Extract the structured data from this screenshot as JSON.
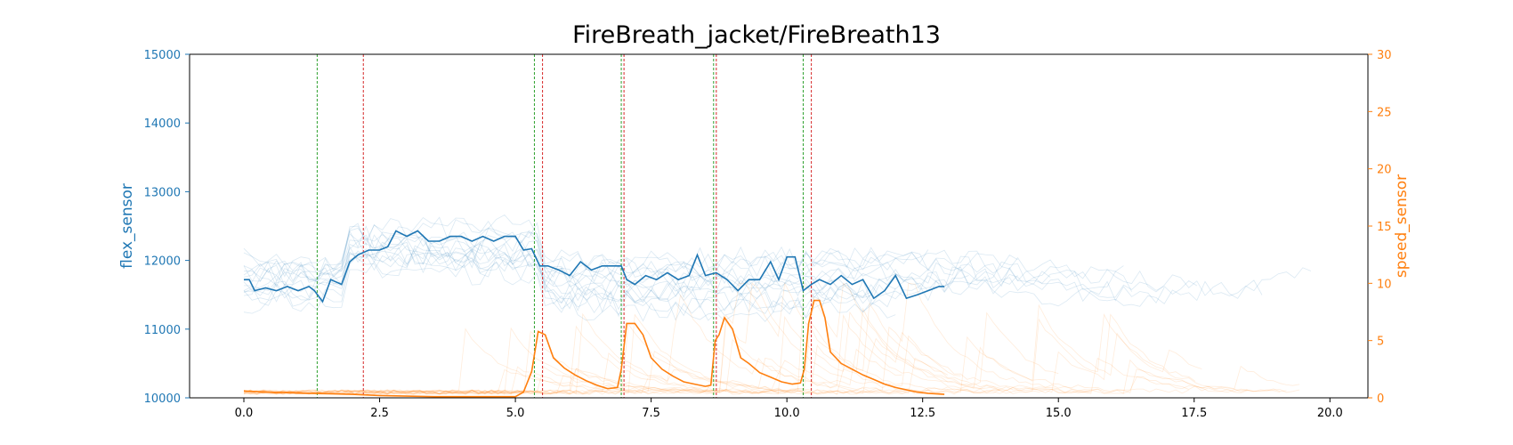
{
  "colors": {
    "flex": "#1f77b4",
    "speed": "#ff7f0e",
    "start_marker": "#2ca02c",
    "end_marker": "#d62728",
    "frame": "#000000"
  },
  "chart_data": {
    "type": "line",
    "title": "FireBreath_jacket/FireBreath13",
    "xlabel": "",
    "ylabel_left": "flex_sensor",
    "ylabel_right": "speed_sensor",
    "xlim": [
      -1.0,
      20.7
    ],
    "ylim_left": [
      10000,
      15000
    ],
    "ylim_right": [
      0,
      30
    ],
    "x_ticks": [
      0.0,
      2.5,
      5.0,
      7.5,
      10.0,
      12.5,
      15.0,
      17.5,
      20.0
    ],
    "x_tick_labels": [
      "0.0",
      "2.5",
      "5.0",
      "7.5",
      "10.0",
      "12.5",
      "15.0",
      "17.5",
      "20.0"
    ],
    "y_left_ticks": [
      10000,
      11000,
      12000,
      13000,
      14000,
      15000
    ],
    "y_left_tick_labels": [
      "10000",
      "11000",
      "12000",
      "13000",
      "14000",
      "15000"
    ],
    "y_right_ticks": [
      0,
      5,
      10,
      15,
      20,
      25,
      30
    ],
    "y_right_tick_labels": [
      "0",
      "5",
      "10",
      "15",
      "20",
      "25",
      "30"
    ],
    "grid": false,
    "markers_start": [
      1.35,
      5.35,
      6.95,
      8.65,
      10.3
    ],
    "markers_end": [
      2.2,
      5.5,
      7.0,
      8.7,
      10.45
    ],
    "series": [
      {
        "axis": "left",
        "x": [
          0.0,
          0.1,
          0.2,
          0.4,
          0.6,
          0.8,
          1.0,
          1.2,
          1.3,
          1.45,
          1.6,
          1.8,
          1.95,
          2.1,
          2.3,
          2.5,
          2.65,
          2.8,
          3.0,
          3.2,
          3.4,
          3.6,
          3.8,
          4.0,
          4.2,
          4.4,
          4.6,
          4.8,
          5.0,
          5.15,
          5.3,
          5.45,
          5.6,
          5.8,
          6.0,
          6.2,
          6.4,
          6.6,
          6.8,
          6.95,
          7.05,
          7.2,
          7.4,
          7.6,
          7.8,
          8.0,
          8.2,
          8.35,
          8.5,
          8.7,
          8.9,
          9.1,
          9.3,
          9.5,
          9.7,
          9.85,
          10.0,
          10.15,
          10.3,
          10.45,
          10.6,
          10.8,
          11.0,
          11.2,
          11.4,
          11.6,
          11.8,
          12.0,
          12.2,
          12.4,
          12.6,
          12.8,
          12.9
        ],
        "y": [
          11720,
          11720,
          11560,
          11600,
          11560,
          11620,
          11560,
          11620,
          11560,
          11400,
          11720,
          11650,
          11980,
          12080,
          12150,
          12150,
          12200,
          12430,
          12350,
          12430,
          12280,
          12280,
          12350,
          12350,
          12280,
          12350,
          12280,
          12350,
          12350,
          12150,
          12170,
          11920,
          11920,
          11860,
          11780,
          11980,
          11860,
          11920,
          11920,
          11920,
          11720,
          11650,
          11780,
          11720,
          11820,
          11720,
          11780,
          12080,
          11780,
          11820,
          11720,
          11560,
          11720,
          11720,
          11980,
          11720,
          12050,
          12050,
          11560,
          11650,
          11720,
          11650,
          11780,
          11650,
          11720,
          11450,
          11560,
          11780,
          11450,
          11500,
          11560,
          11620,
          11620
        ]
      },
      {
        "axis": "right",
        "x": [
          0.0,
          0.4,
          0.8,
          1.2,
          1.6,
          2.0,
          2.5,
          3.0,
          3.5,
          4.0,
          4.5,
          5.0,
          5.15,
          5.3,
          5.42,
          5.55,
          5.7,
          5.9,
          6.1,
          6.3,
          6.5,
          6.7,
          6.88,
          6.95,
          7.05,
          7.2,
          7.35,
          7.5,
          7.7,
          7.9,
          8.1,
          8.3,
          8.5,
          8.6,
          8.68,
          8.75,
          8.85,
          9.0,
          9.15,
          9.3,
          9.5,
          9.7,
          9.9,
          10.1,
          10.25,
          10.32,
          10.4,
          10.5,
          10.6,
          10.7,
          10.8,
          11.0,
          11.2,
          11.4,
          11.6,
          11.8,
          12.0,
          12.2,
          12.4,
          12.6,
          12.9
        ],
        "y": [
          0.6,
          0.5,
          0.45,
          0.4,
          0.35,
          0.3,
          0.2,
          0.15,
          0.1,
          0.1,
          0.1,
          0.1,
          0.5,
          2.3,
          5.8,
          5.5,
          3.5,
          2.6,
          2.0,
          1.5,
          1.1,
          0.8,
          0.9,
          2.5,
          6.5,
          6.5,
          5.5,
          3.5,
          2.5,
          1.9,
          1.4,
          1.2,
          1.0,
          1.1,
          5.0,
          5.5,
          7.0,
          6.0,
          3.5,
          3.0,
          2.2,
          1.8,
          1.4,
          1.2,
          1.3,
          2.5,
          6.5,
          8.5,
          8.5,
          7.0,
          4.0,
          3.0,
          2.5,
          2.0,
          1.6,
          1.2,
          0.9,
          0.7,
          0.5,
          0.4,
          0.3
        ]
      }
    ]
  }
}
